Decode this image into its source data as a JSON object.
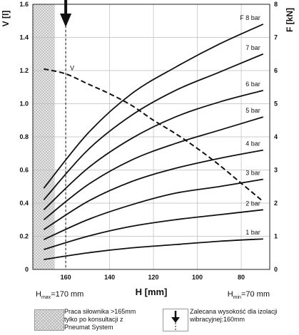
{
  "chart_data": {
    "type": "line",
    "x_axis": {
      "label": "H [mm]",
      "ticks": [
        160,
        140,
        120,
        100,
        80
      ],
      "range": [
        175,
        67
      ],
      "reversed": true
    },
    "y_left": {
      "label": "V [l]",
      "ticks": [
        "0",
        "0.2",
        "0.4",
        "0.6",
        "0.8",
        "1.0",
        "1.2",
        "1.4",
        "1.6"
      ],
      "range": [
        0,
        1.6
      ]
    },
    "y_right": {
      "label": "F [kN]",
      "ticks": [
        "0",
        "1",
        "2",
        "3",
        "4",
        "5",
        "6",
        "7",
        "8"
      ],
      "range": [
        0,
        8
      ]
    },
    "h_max_label": {
      "prefix": "H",
      "sub": "max",
      "suffix": "=170 mm"
    },
    "h_min_label": {
      "prefix": "H",
      "sub": "min",
      "suffix": "=70 mm"
    },
    "grid": true,
    "force_series": [
      {
        "name": "1 bar",
        "x": [
          170,
          150,
          130,
          110,
          90,
          70
        ],
        "y": [
          0.3,
          0.5,
          0.65,
          0.75,
          0.85,
          0.92
        ]
      },
      {
        "name": "2 bar",
        "x": [
          170,
          150,
          130,
          110,
          90,
          70
        ],
        "y": [
          0.6,
          1.0,
          1.3,
          1.5,
          1.65,
          1.8
        ]
      },
      {
        "name": "3 bar",
        "x": [
          170,
          150,
          130,
          110,
          90,
          70
        ],
        "y": [
          0.9,
          1.5,
          1.95,
          2.3,
          2.5,
          2.72
        ]
      },
      {
        "name": "4 bar",
        "x": [
          170,
          150,
          130,
          110,
          90,
          70
        ],
        "y": [
          1.2,
          2.05,
          2.65,
          3.05,
          3.35,
          3.6
        ]
      },
      {
        "name": "5 bar",
        "x": [
          170,
          150,
          130,
          110,
          90,
          70
        ],
        "y": [
          1.5,
          2.55,
          3.3,
          3.8,
          4.2,
          4.6
        ]
      },
      {
        "name": "6 bar",
        "x": [
          170,
          150,
          130,
          110,
          90,
          70
        ],
        "y": [
          1.8,
          3.05,
          3.95,
          4.6,
          5.05,
          5.4
        ]
      },
      {
        "name": "7 bar",
        "x": [
          170,
          150,
          130,
          110,
          90,
          70
        ],
        "y": [
          2.1,
          3.6,
          4.65,
          5.4,
          5.95,
          6.5
        ]
      },
      {
        "name": "8 bar",
        "x": [
          170,
          150,
          130,
          110,
          90,
          70
        ],
        "y": [
          2.45,
          4.1,
          5.3,
          6.1,
          6.8,
          7.4
        ]
      }
    ],
    "volume_series": {
      "name": "V",
      "style": "dashed",
      "x": [
        170,
        160,
        150,
        140,
        130,
        120,
        110,
        100,
        90,
        80,
        70
      ],
      "y": [
        1.21,
        1.18,
        1.12,
        1.06,
        0.99,
        0.9,
        0.82,
        0.73,
        0.63,
        0.52,
        0.41
      ]
    },
    "force_label_prefix": "F",
    "recommended_height_mm": 160,
    "hatched_region": {
      "from_mm": 175,
      "to_mm": 165
    }
  },
  "legend": {
    "hatched_text": "Praca siłownika >165mm tylko po konsultacji z Pneumat System",
    "arrow_text": "Zalecana wysokość dla izolacji wibracyjnej:160mm"
  }
}
